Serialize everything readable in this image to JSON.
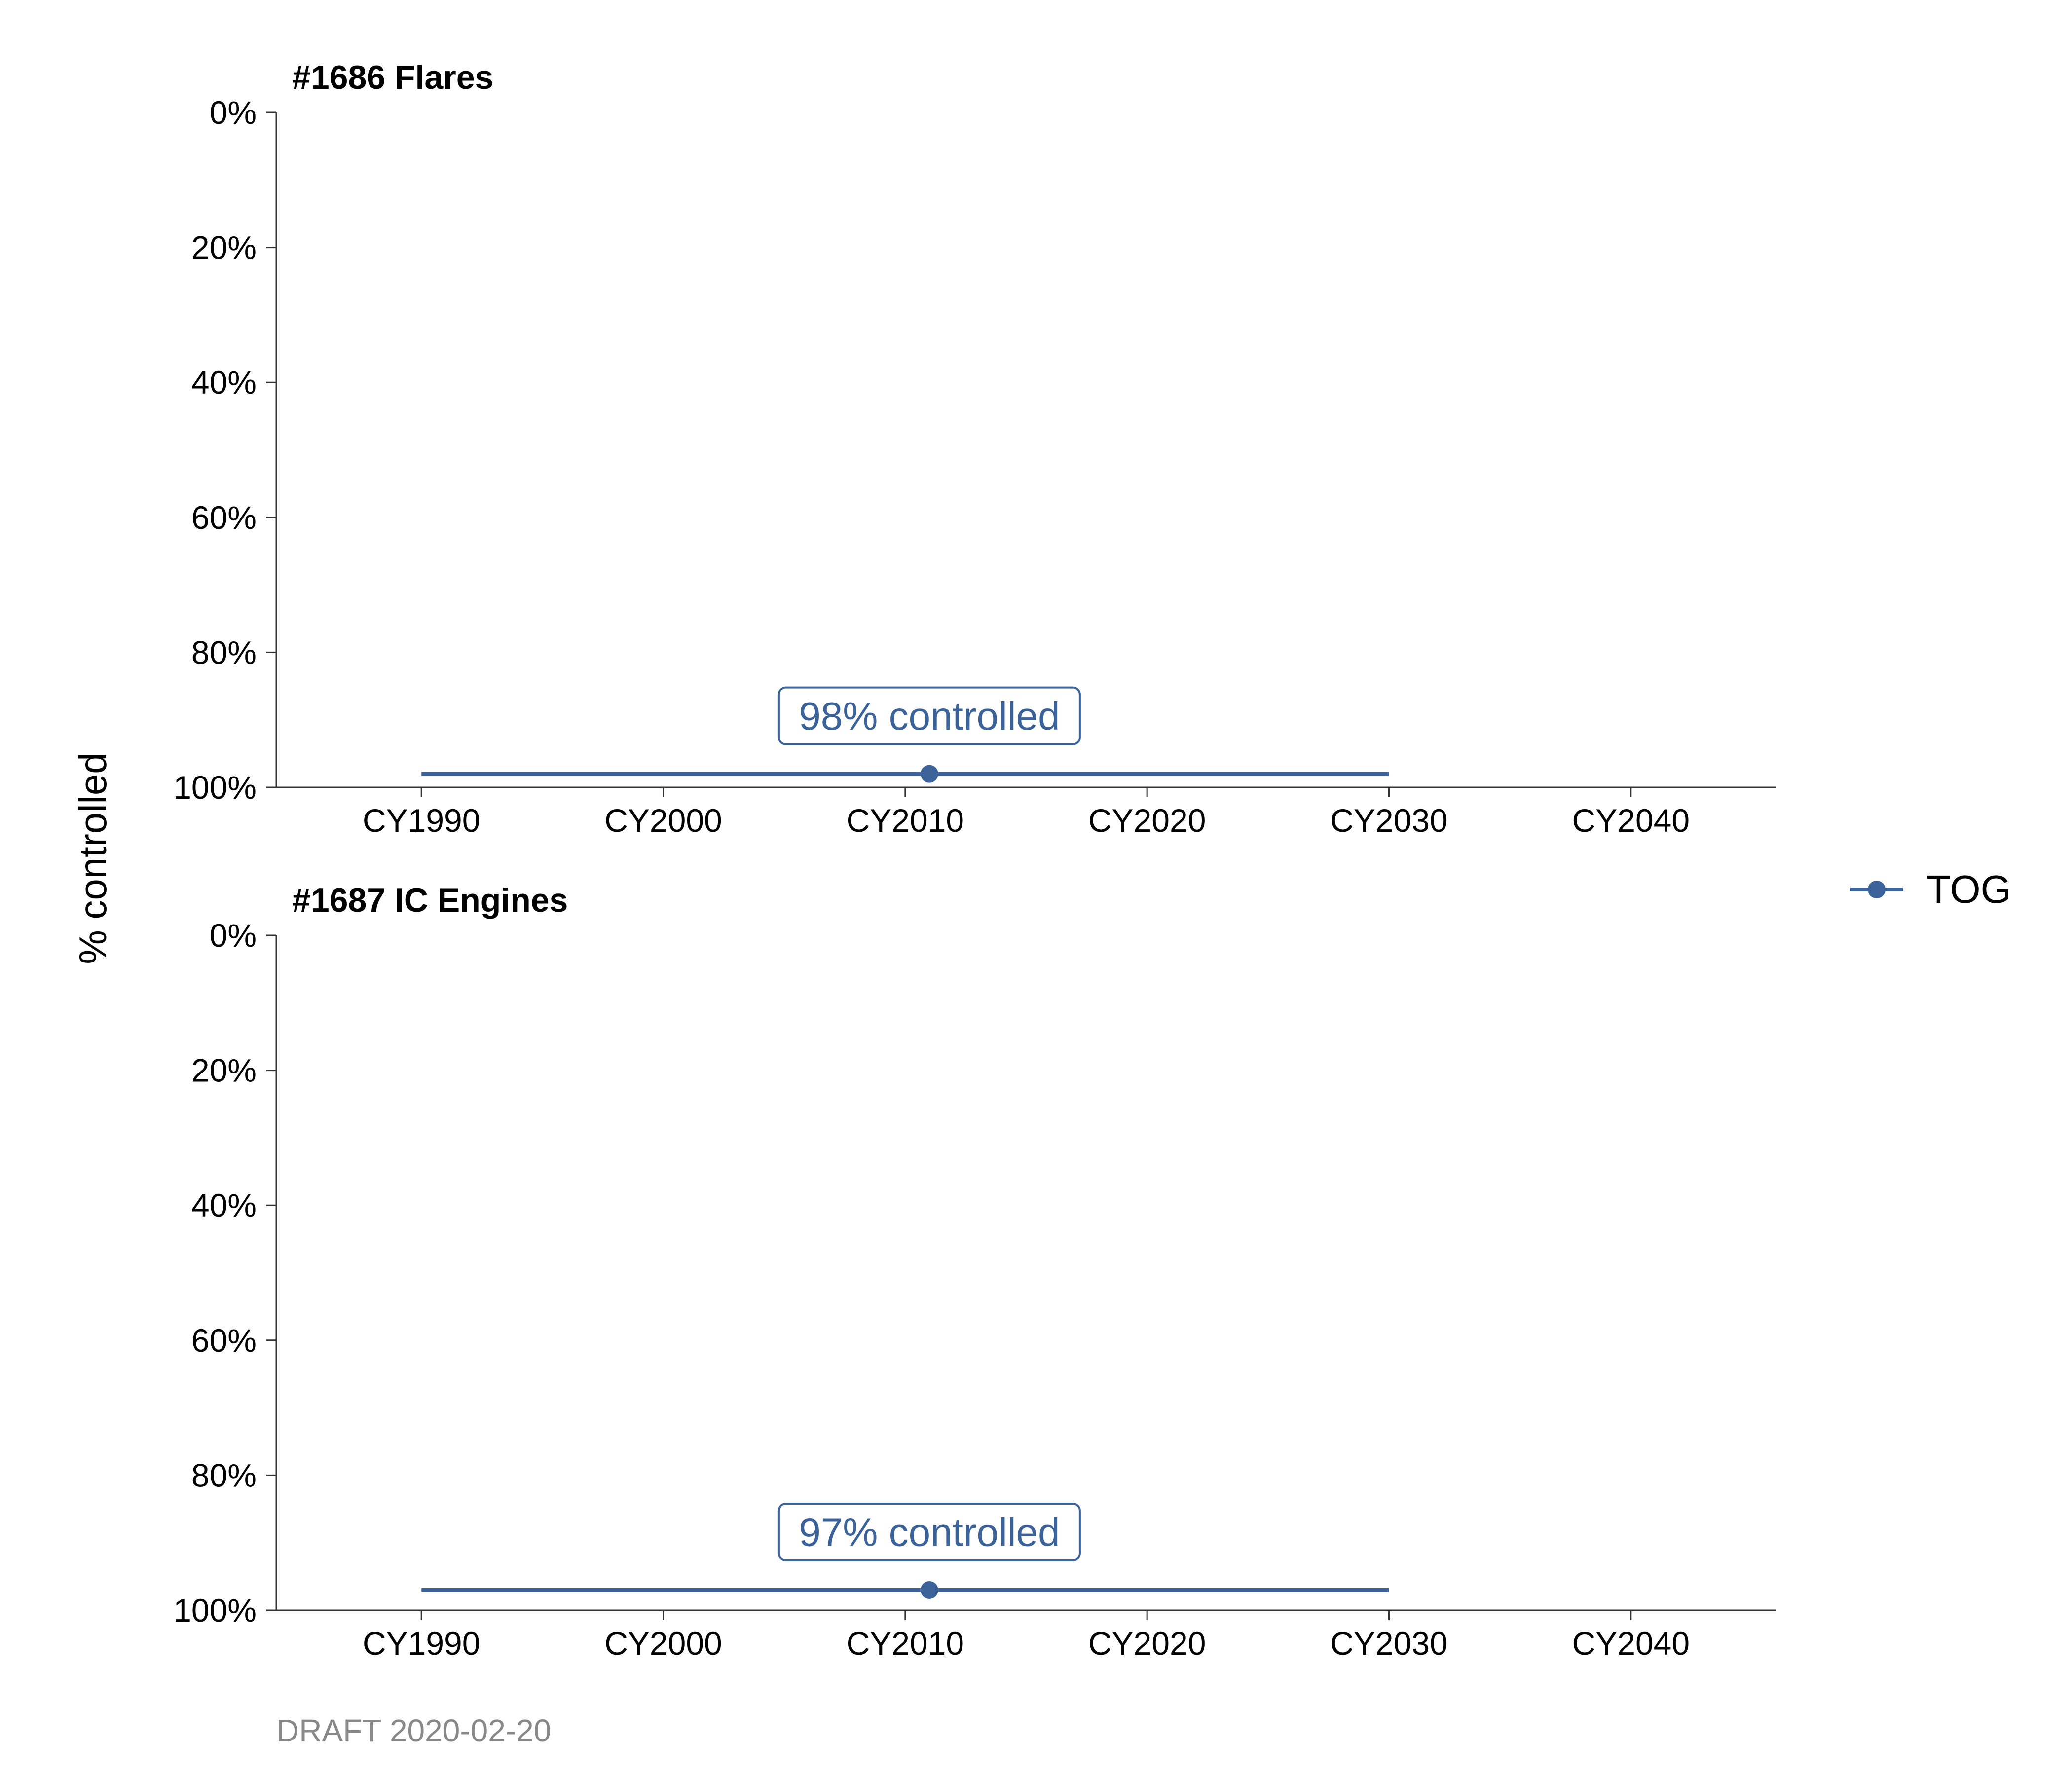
{
  "chart_data": {
    "type": "line",
    "ylabel": "% controlled",
    "caption": "DRAFT 2020-02-20",
    "series_color": "#3B6399",
    "legend": {
      "label": "TOG",
      "position": "right"
    },
    "x_ticks": [
      {
        "value": 1990,
        "label": "CY1990"
      },
      {
        "value": 2000,
        "label": "CY2000"
      },
      {
        "value": 2010,
        "label": "CY2010"
      },
      {
        "value": 2020,
        "label": "CY2020"
      },
      {
        "value": 2030,
        "label": "CY2030"
      },
      {
        "value": 2040,
        "label": "CY2040"
      }
    ],
    "xlim": [
      1984,
      2046
    ],
    "y_ticks": [
      {
        "value": 0,
        "label": "0%"
      },
      {
        "value": 20,
        "label": "20%"
      },
      {
        "value": 40,
        "label": "40%"
      },
      {
        "value": 60,
        "label": "60%"
      },
      {
        "value": 80,
        "label": "80%"
      },
      {
        "value": 100,
        "label": "100%"
      }
    ],
    "ylim": [
      0,
      100
    ],
    "y_reversed": true,
    "grid": false,
    "panels": [
      {
        "title": "#1686 Flares",
        "line": {
          "x": [
            1990,
            2030
          ],
          "y": [
            98,
            98
          ]
        },
        "point": {
          "x": 2011,
          "y": 98
        },
        "annotation": "98% controlled"
      },
      {
        "title": "#1687 IC Engines",
        "line": {
          "x": [
            1990,
            2030
          ],
          "y": [
            97,
            97
          ]
        },
        "point": {
          "x": 2011,
          "y": 97
        },
        "annotation": "97% controlled"
      }
    ]
  }
}
